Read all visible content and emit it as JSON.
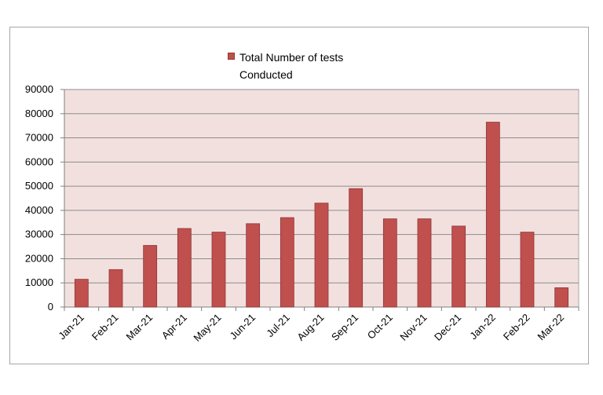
{
  "chart_data": {
    "type": "bar",
    "title": "",
    "xlabel": "",
    "ylabel": "",
    "ylim": [
      0,
      90000
    ],
    "yticks": [
      0,
      10000,
      20000,
      30000,
      40000,
      50000,
      60000,
      70000,
      80000,
      90000
    ],
    "grid": true,
    "legend_position": "top-center",
    "categories": [
      "Jan-21",
      "Feb-21",
      "Mar-21",
      "Apr-21",
      "May-21",
      "Jun-21",
      "Jul-21",
      "Aug-21",
      "Sep-21",
      "Oct-21",
      "Nov-21",
      "Dec-21",
      "Jan-22",
      "Feb-22",
      "Mar-22"
    ],
    "series": [
      {
        "name": "Total Number of tests Conducted",
        "color": "#c0504d",
        "values": [
          11500,
          15500,
          25500,
          32500,
          31000,
          34500,
          37000,
          43000,
          49000,
          36500,
          36500,
          33500,
          76500,
          31000,
          8000
        ]
      }
    ],
    "plot_background": "#f2e0df"
  }
}
